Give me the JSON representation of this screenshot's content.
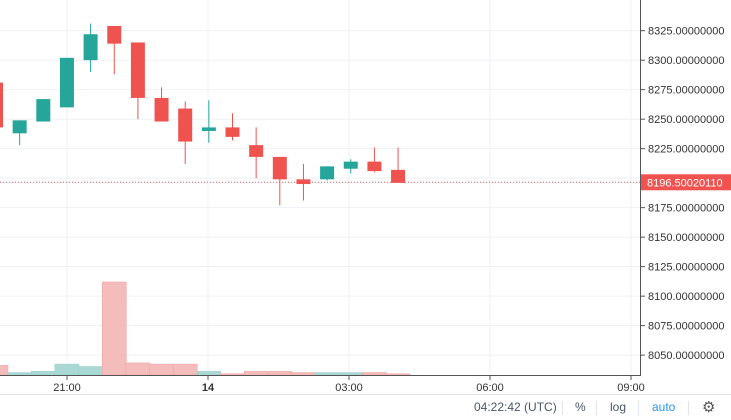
{
  "colors": {
    "up": "#26a69a",
    "down": "#ef5350",
    "up_volume": "#a8d9d4",
    "down_volume": "#f5bcbc",
    "grid": "#eef1f4",
    "axis_text": "#333333",
    "price_line": "#ef5350",
    "auto_active": "#2196f3"
  },
  "status_bar": {
    "time": "04:22:42 (UTC)",
    "percent": "%",
    "log": "log",
    "auto": "auto",
    "settings_icon": "gear-icon"
  },
  "chart_data": {
    "type": "candlestick",
    "y_axis": {
      "ticks": [
        "8325.00000000",
        "8300.00000000",
        "8275.00000000",
        "8250.00000000",
        "8225.00000000",
        "8200.00000000",
        "8175.00000000",
        "8150.00000000",
        "8125.00000000",
        "8100.00000000",
        "8075.00000000",
        "8050.00000000"
      ],
      "range": [
        8034,
        8351
      ]
    },
    "x_axis": {
      "ticks": [
        "21:00",
        "14",
        "03:00",
        "06:00",
        "09:00"
      ],
      "bold_ticks": [
        "14"
      ]
    },
    "current_price": "8196.50020110",
    "candles": [
      {
        "open": 8281,
        "high": 8281,
        "low": 8241,
        "close": 8243
      },
      {
        "open": 8238,
        "high": 8249,
        "low": 8228,
        "close": 8249
      },
      {
        "open": 8248,
        "high": 8267,
        "low": 8248,
        "close": 8267
      },
      {
        "open": 8260,
        "high": 8302,
        "low": 8260,
        "close": 8302
      },
      {
        "open": 8300,
        "high": 8331,
        "low": 8290,
        "close": 8322
      },
      {
        "open": 8329,
        "high": 8329,
        "low": 8288,
        "close": 8314
      },
      {
        "open": 8315,
        "high": 8315,
        "low": 8250,
        "close": 8268
      },
      {
        "open": 8268,
        "high": 8277,
        "low": 8248,
        "close": 8248
      },
      {
        "open": 8259,
        "high": 8265,
        "low": 8212,
        "close": 8231
      },
      {
        "open": 8240,
        "high": 8266,
        "low": 8230,
        "close": 8243
      },
      {
        "open": 8243,
        "high": 8255,
        "low": 8232,
        "close": 8235
      },
      {
        "open": 8228,
        "high": 8243,
        "low": 8200,
        "close": 8218
      },
      {
        "open": 8218,
        "high": 8218,
        "low": 8177,
        "close": 8199
      },
      {
        "open": 8199,
        "high": 8212,
        "low": 8181,
        "close": 8195
      },
      {
        "open": 8199,
        "high": 8210,
        "low": 8198,
        "close": 8210
      },
      {
        "open": 8208,
        "high": 8216,
        "low": 8204,
        "close": 8214
      },
      {
        "open": 8214,
        "high": 8226,
        "low": 8205,
        "close": 8206
      },
      {
        "open": 8207,
        "high": 8226,
        "low": 8197,
        "close": 8196
      }
    ],
    "volumes": [
      {
        "value": 8,
        "dir": "down"
      },
      {
        "value": 2,
        "dir": "up"
      },
      {
        "value": 3,
        "dir": "up"
      },
      {
        "value": 9,
        "dir": "up"
      },
      {
        "value": 7,
        "dir": "up"
      },
      {
        "value": 77,
        "dir": "down"
      },
      {
        "value": 10,
        "dir": "down"
      },
      {
        "value": 9,
        "dir": "down"
      },
      {
        "value": 9,
        "dir": "down"
      },
      {
        "value": 3,
        "dir": "up"
      },
      {
        "value": 1,
        "dir": "down"
      },
      {
        "value": 3,
        "dir": "down"
      },
      {
        "value": 3,
        "dir": "down"
      },
      {
        "value": 2,
        "dir": "down"
      },
      {
        "value": 2,
        "dir": "up"
      },
      {
        "value": 2,
        "dir": "up"
      },
      {
        "value": 2,
        "dir": "down"
      },
      {
        "value": 1,
        "dir": "down"
      }
    ],
    "volume_max": 100,
    "grid": true,
    "legend": "none"
  }
}
